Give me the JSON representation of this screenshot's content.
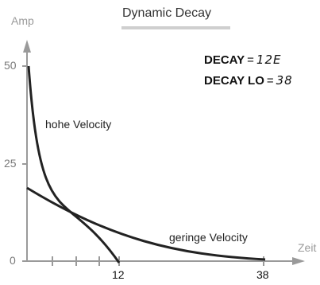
{
  "title": "Dynamic Decay",
  "axes": {
    "y_label": "Amp",
    "x_label": "Zeit",
    "y_ticks": [
      "50",
      "25",
      "0"
    ],
    "x_ticks": [
      "12",
      "38"
    ]
  },
  "params": [
    {
      "key": "DECAY",
      "eq": "=",
      "value": "12E"
    },
    {
      "key": "DECAY LO",
      "eq": "=",
      "value": "38"
    }
  ],
  "curves": {
    "high": "hohe Velocity",
    "low": "geringe Velocity"
  }
}
